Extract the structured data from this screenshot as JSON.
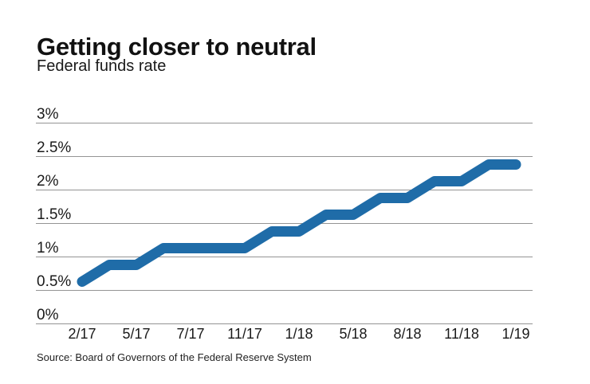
{
  "header": {
    "title": "Getting closer to neutral",
    "subtitle": "Federal funds rate"
  },
  "source": "Source: Board of Governors of the Federal Reserve System",
  "colors": {
    "line": "#1f6ca8",
    "gridline": "#949494",
    "text": "#1a1a1a"
  },
  "chart_data": {
    "type": "line",
    "title": "Getting closer to neutral",
    "subtitle": "Federal funds rate",
    "series_name": "Federal funds rate",
    "x": [
      "2/17",
      "3/17",
      "5/17",
      "6/17",
      "7/17",
      "9/17",
      "11/17",
      "12/17",
      "1/18",
      "3/18",
      "5/18",
      "6/18",
      "8/18",
      "9/18",
      "11/18",
      "12/18",
      "1/19"
    ],
    "values": [
      0.625,
      0.875,
      0.875,
      1.125,
      1.125,
      1.125,
      1.125,
      1.375,
      1.375,
      1.625,
      1.625,
      1.875,
      1.875,
      2.125,
      2.125,
      2.375,
      2.375
    ],
    "ylim": [
      0,
      3
    ],
    "y_ticks": [
      3,
      2.5,
      2,
      1.5,
      1,
      0.5,
      0
    ],
    "y_tick_labels": [
      "3%",
      "2.5%",
      "2%",
      "1.5%",
      "1%",
      "0.5%",
      "0%"
    ],
    "x_tick_indices": [
      0,
      2,
      4,
      6,
      8,
      10,
      12,
      14,
      16
    ],
    "x_tick_labels": [
      "2/17",
      "5/17",
      "7/17",
      "11/17",
      "1/18",
      "5/18",
      "8/18",
      "11/18",
      "1/19"
    ],
    "grid": "horizontal",
    "legend": "none"
  }
}
